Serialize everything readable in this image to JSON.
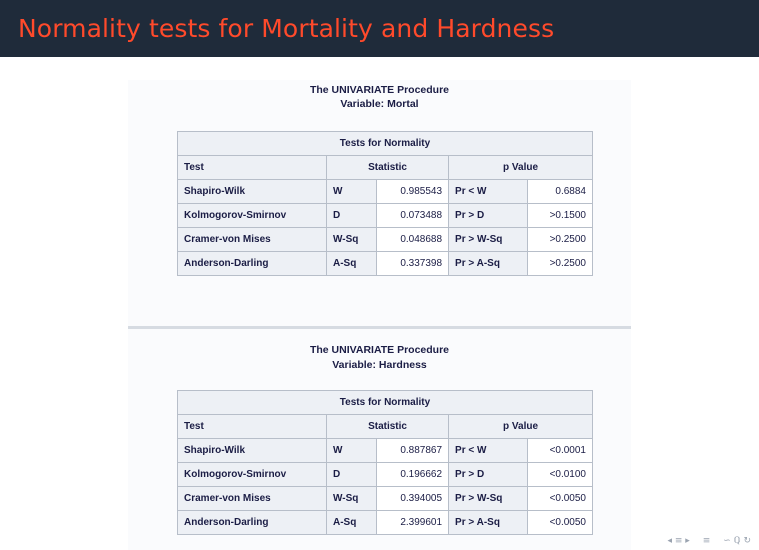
{
  "slide_title": "Normality tests for Mortality and Hardness",
  "sections": [
    {
      "procedure": "The UNIVARIATE Procedure",
      "variable": "Variable: Mortal",
      "table_title": "Tests for Normality",
      "headers": {
        "test": "Test",
        "statistic": "Statistic",
        "pvalue": "p Value"
      },
      "rows": [
        {
          "test": "Shapiro-Wilk",
          "stat_label": "W",
          "stat_value": "0.985543",
          "p_label": "Pr < W",
          "p_value": "0.6884"
        },
        {
          "test": "Kolmogorov-Smirnov",
          "stat_label": "D",
          "stat_value": "0.073488",
          "p_label": "Pr > D",
          "p_value": ">0.1500"
        },
        {
          "test": "Cramer-von Mises",
          "stat_label": "W-Sq",
          "stat_value": "0.048688",
          "p_label": "Pr > W-Sq",
          "p_value": ">0.2500"
        },
        {
          "test": "Anderson-Darling",
          "stat_label": "A-Sq",
          "stat_value": "0.337398",
          "p_label": "Pr > A-Sq",
          "p_value": ">0.2500"
        }
      ]
    },
    {
      "procedure": "The UNIVARIATE Procedure",
      "variable": "Variable: Hardness",
      "table_title": "Tests for Normality",
      "headers": {
        "test": "Test",
        "statistic": "Statistic",
        "pvalue": "p Value"
      },
      "rows": [
        {
          "test": "Shapiro-Wilk",
          "stat_label": "W",
          "stat_value": "0.887867",
          "p_label": "Pr < W",
          "p_value": "<0.0001"
        },
        {
          "test": "Kolmogorov-Smirnov",
          "stat_label": "D",
          "stat_value": "0.196662",
          "p_label": "Pr > D",
          "p_value": "<0.0100"
        },
        {
          "test": "Cramer-von Mises",
          "stat_label": "W-Sq",
          "stat_value": "0.394005",
          "p_label": "Pr > W-Sq",
          "p_value": "<0.0050"
        },
        {
          "test": "Anderson-Darling",
          "stat_label": "A-Sq",
          "stat_value": "2.399601",
          "p_label": "Pr > A-Sq",
          "p_value": "<0.0050"
        }
      ]
    }
  ],
  "nav_icons": [
    "nav-subsection-icon",
    "nav-align-icon",
    "nav-search-icon"
  ]
}
